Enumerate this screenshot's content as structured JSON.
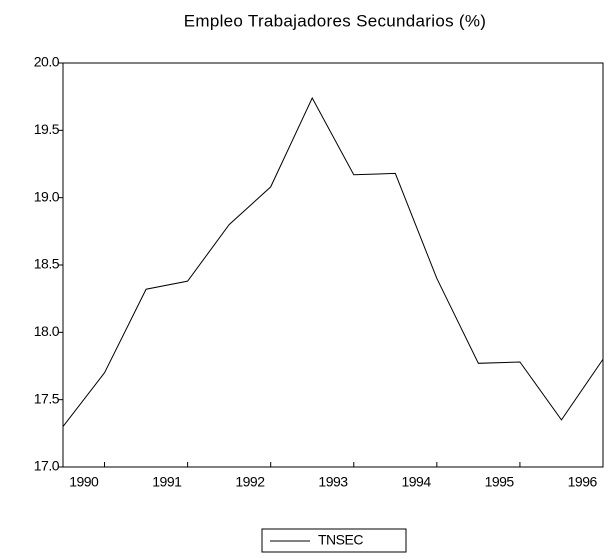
{
  "chart_data": {
    "type": "line",
    "title": "Empleo Trabajadores Secundarios (%)",
    "categories": [
      "1990",
      null,
      "1991",
      null,
      "1992",
      null,
      "1993",
      null,
      "1994",
      null,
      "1995",
      null,
      "1996",
      null
    ],
    "series": [
      {
        "name": "TNSEC",
        "color": "#000000",
        "values": [
          17.3,
          17.7,
          18.32,
          18.38,
          18.8,
          19.08,
          19.74,
          19.17,
          19.18,
          18.4,
          17.77,
          17.78,
          17.35,
          17.8
        ]
      }
    ],
    "ylim": [
      17.0,
      20.0
    ],
    "yticks": [
      {
        "value": 17.0,
        "label": "17.0"
      },
      {
        "value": 17.5,
        "label": "17.5"
      },
      {
        "value": 18.0,
        "label": "18.0"
      },
      {
        "value": 18.5,
        "label": "18.5"
      },
      {
        "value": 19.0,
        "label": "19.0"
      },
      {
        "value": 19.5,
        "label": "19.5"
      },
      {
        "value": 20.0,
        "label": "20.0"
      }
    ],
    "grid": false,
    "legend": "bottom"
  }
}
